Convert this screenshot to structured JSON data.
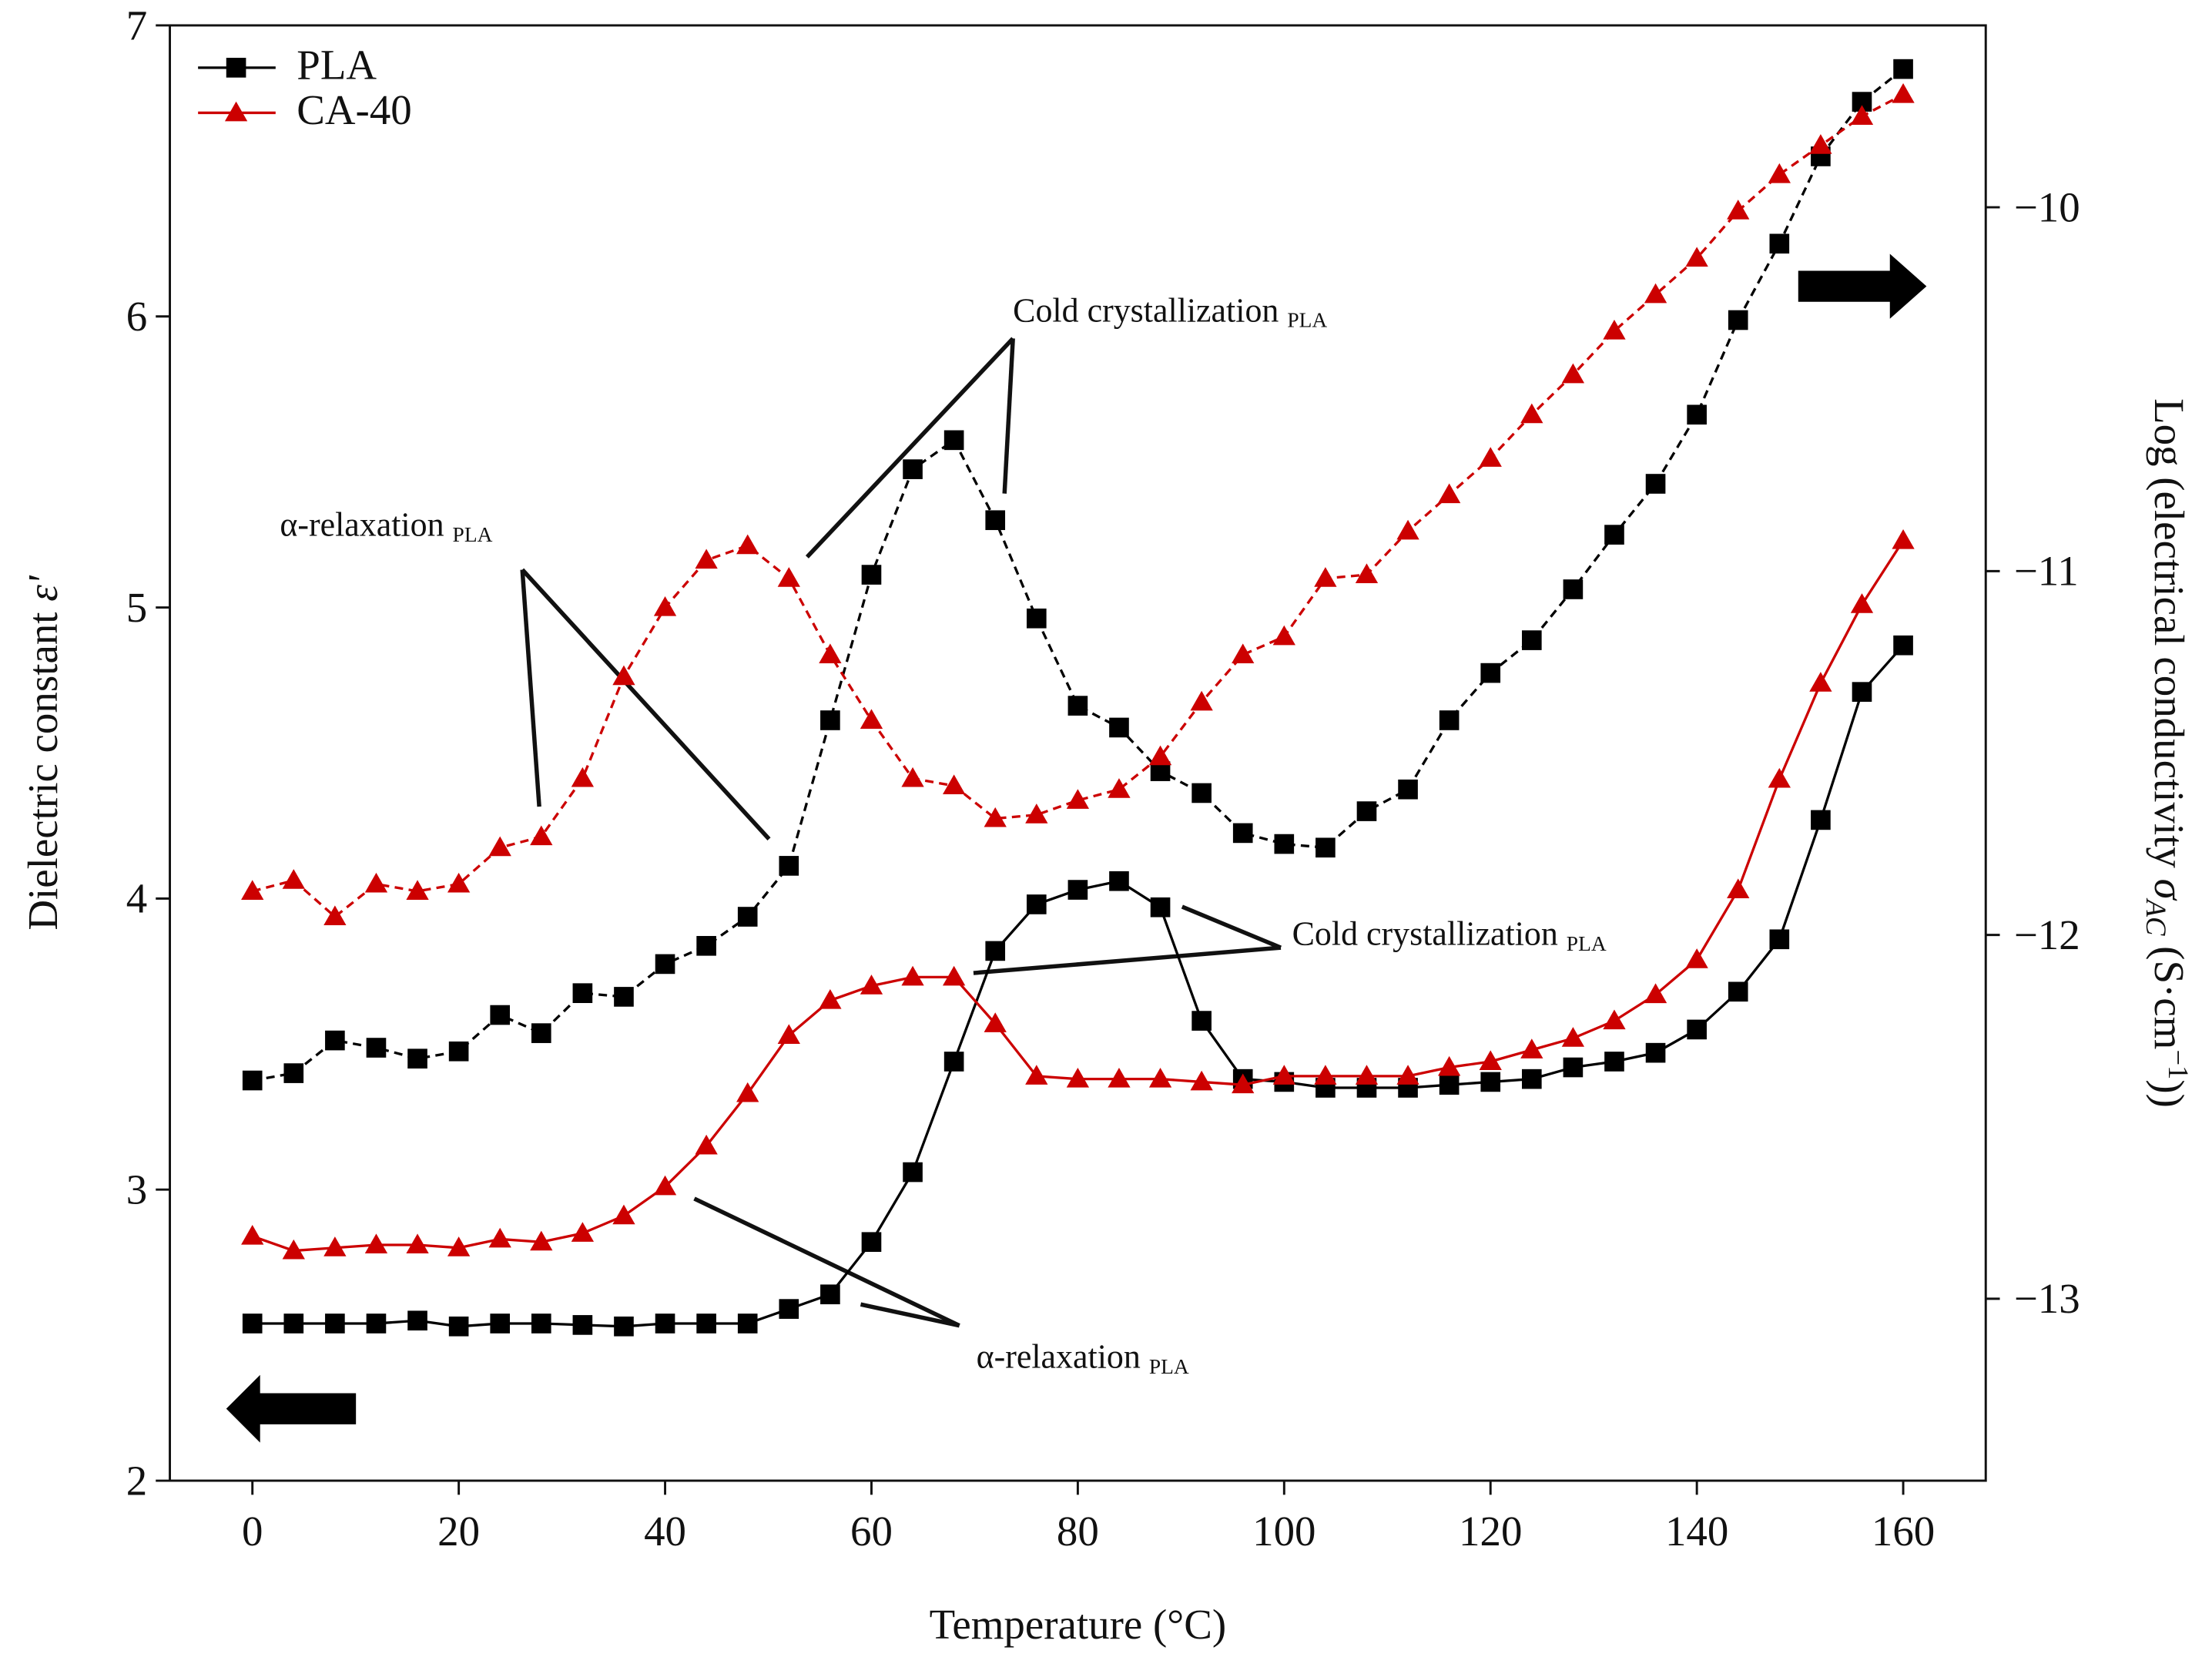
{
  "chart_data": {
    "type": "line",
    "x": [
      0,
      4,
      8,
      12,
      16,
      20,
      24,
      28,
      32,
      36,
      40,
      44,
      48,
      52,
      56,
      60,
      64,
      68,
      72,
      76,
      80,
      84,
      88,
      92,
      96,
      100,
      104,
      108,
      112,
      116,
      120,
      124,
      128,
      132,
      136,
      140,
      144,
      148,
      152,
      156,
      160
    ],
    "xlabel": "Temperature (°C)",
    "ylabel": {
      "text": "Dielectric constant ",
      "symbol": "ε'"
    },
    "y2label": {
      "prefix": "Log (electrical conductivity ",
      "symbol": "σ",
      "sub": "AC",
      "unit": " (S·cm",
      "sup": "−1",
      "suffix": "))"
    },
    "xlim": [
      -8,
      168
    ],
    "xticks": [
      0,
      20,
      40,
      60,
      80,
      100,
      120,
      140,
      160
    ],
    "ylim": [
      2,
      7
    ],
    "yticks": [
      2,
      3,
      4,
      5,
      6,
      7
    ],
    "y2lim": [
      -13.5,
      -9.5
    ],
    "y2ticks": [
      {
        "value": -10,
        "label": "−10"
      },
      {
        "value": -11,
        "label": "−11"
      },
      {
        "value": -12,
        "label": "−12"
      },
      {
        "value": -13,
        "label": "−13"
      }
    ],
    "legend_position": "upper left",
    "series": [
      {
        "name": "PLA",
        "color": "#000000",
        "marker": "square",
        "dash": false,
        "values": [
          2.54,
          2.54,
          2.54,
          2.54,
          2.55,
          2.53,
          2.54,
          2.54,
          2.535,
          2.53,
          2.54,
          2.54,
          2.54,
          2.59,
          2.64,
          2.82,
          3.06,
          3.44,
          3.82,
          3.98,
          4.03,
          4.06,
          3.97,
          3.58,
          3.38,
          3.37,
          3.35,
          3.35,
          3.35,
          3.36,
          3.37,
          3.38,
          3.42,
          3.44,
          3.47,
          3.55,
          3.68,
          3.86,
          4.27,
          4.71,
          4.87
        ]
      },
      {
        "name": "CA-40",
        "color": "#cc0000",
        "marker": "triangle",
        "dash": false,
        "values": [
          2.84,
          2.79,
          2.8,
          2.81,
          2.81,
          2.8,
          2.83,
          2.82,
          2.85,
          2.91,
          3.01,
          3.15,
          3.33,
          3.53,
          3.65,
          3.7,
          3.73,
          3.73,
          3.57,
          3.39,
          3.38,
          3.38,
          3.38,
          3.37,
          3.36,
          3.39,
          3.39,
          3.39,
          3.39,
          3.42,
          3.44,
          3.48,
          3.52,
          3.58,
          3.67,
          3.79,
          4.03,
          4.41,
          4.74,
          5.01,
          5.23
        ]
      },
      {
        "name": "PLA",
        "color": "#000000",
        "marker": "square",
        "dash": true,
        "axis": "y2",
        "values": [
          -12.4,
          -12.38,
          -12.29,
          -12.31,
          -12.34,
          -12.32,
          -12.22,
          -12.27,
          -12.16,
          -12.17,
          -12.08,
          -12.03,
          -11.95,
          -11.81,
          -11.41,
          -11.01,
          -10.72,
          -10.64,
          -10.86,
          -11.13,
          -11.37,
          -11.43,
          -11.55,
          -11.61,
          -11.72,
          -11.75,
          -11.76,
          -11.66,
          -11.6,
          -11.41,
          -11.28,
          -11.19,
          -11.05,
          -10.9,
          -10.76,
          -10.57,
          -10.31,
          -10.1,
          -9.86,
          -9.71,
          -9.62
        ]
      },
      {
        "name": "CA-40",
        "color": "#cc0000",
        "marker": "triangle",
        "dash": true,
        "axis": "y2",
        "values": [
          -11.88,
          -11.85,
          -11.95,
          -11.86,
          -11.88,
          -11.86,
          -11.76,
          -11.73,
          -11.57,
          -11.29,
          -11.1,
          -10.97,
          -10.93,
          -11.02,
          -11.23,
          -11.41,
          -11.57,
          -11.59,
          -11.68,
          -11.67,
          -11.63,
          -11.6,
          -11.51,
          -11.36,
          -11.23,
          -11.18,
          -11.02,
          -11.01,
          -10.89,
          -10.79,
          -10.69,
          -10.57,
          -10.46,
          -10.34,
          -10.24,
          -10.14,
          -10.01,
          -9.91,
          -9.83,
          -9.75,
          -9.69
        ]
      }
    ],
    "annotations": [
      {
        "text": "Cold crystallization ",
        "sub": "PLA"
      },
      {
        "text": "α-relaxation ",
        "sub": "PLA"
      },
      {
        "text": "Cold crystallization ",
        "sub": "PLA"
      },
      {
        "text": "α-relaxation ",
        "sub": "PLA"
      }
    ]
  }
}
